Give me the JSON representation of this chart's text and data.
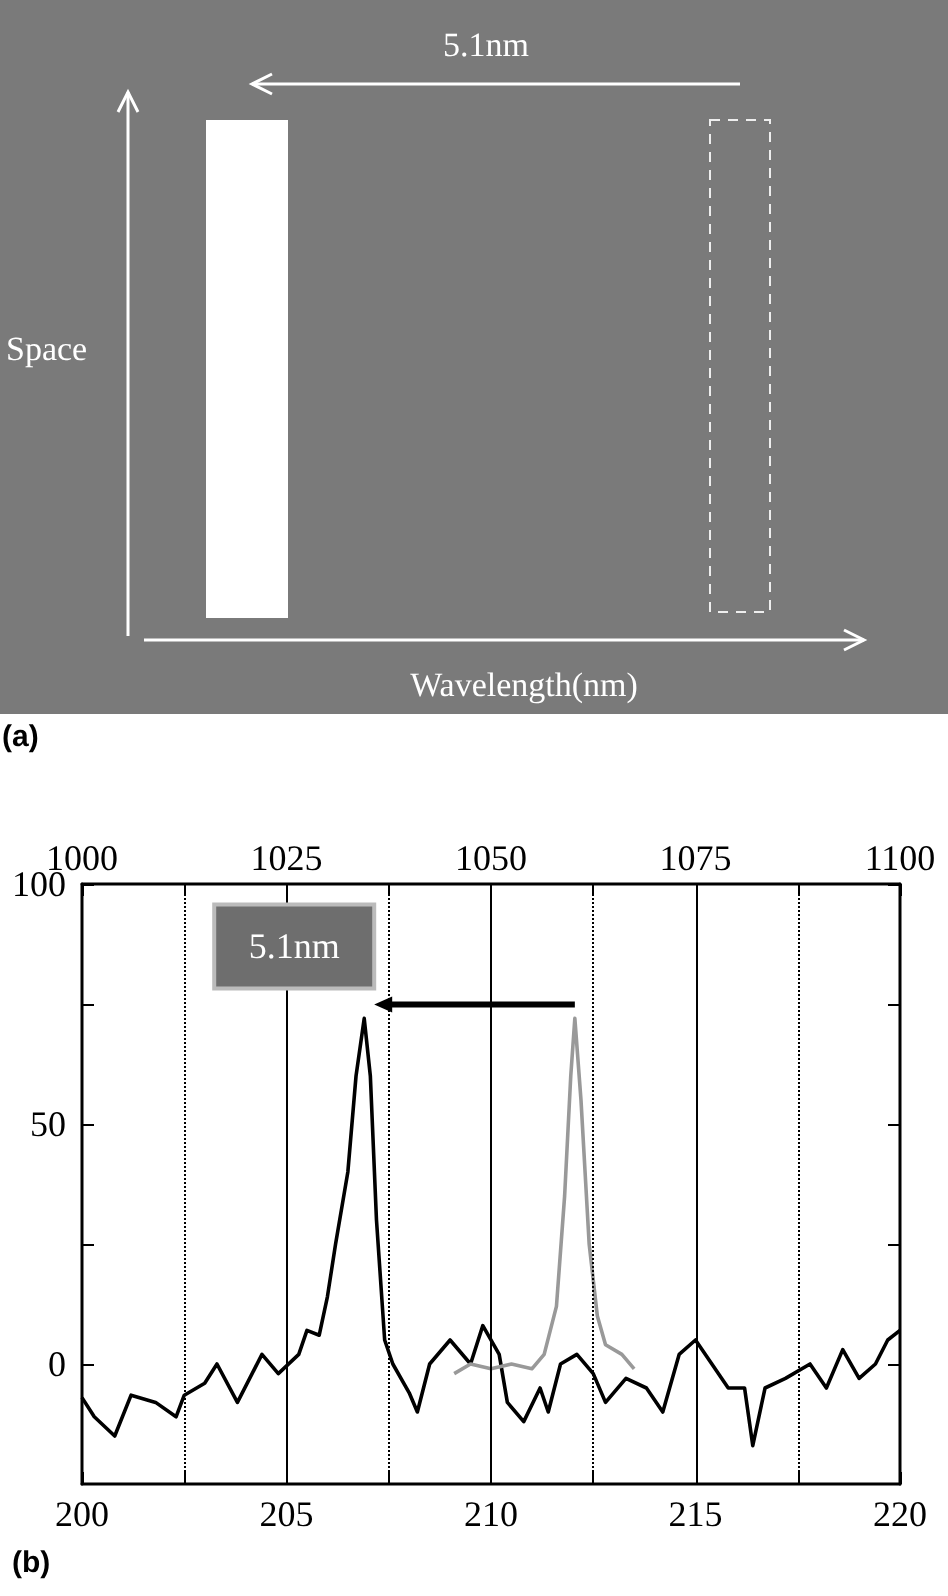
{
  "chart_data": [
    {
      "type": "other",
      "title": "(a)",
      "annotations": [
        "5.1nm",
        "Space",
        "Wavelength(nm)"
      ]
    },
    {
      "type": "line",
      "title": "(b)",
      "xlim": [
        200,
        220
      ],
      "xticks": [
        200,
        {
          "value": 202.5,
          "label": null
        },
        205,
        {
          "value": 207.5,
          "label": null
        },
        210,
        {
          "value": 212.5,
          "label": null
        },
        215,
        {
          "value": 217.5,
          "label": null
        },
        220
      ],
      "x2lim": [
        1000,
        1100
      ],
      "x2ticks": [
        1000,
        {
          "value": 1012.5,
          "label": null
        },
        1025,
        {
          "value": 1037.5,
          "label": null
        },
        1050,
        {
          "value": 1062.5,
          "label": null
        },
        1075,
        {
          "value": 1087.5,
          "label": null
        },
        1100
      ],
      "ylim": [
        -25,
        100
      ],
      "yticks": [
        0,
        {
          "value": 25,
          "label": null
        },
        50,
        {
          "value": 75,
          "label": null
        },
        100
      ],
      "grid": "x",
      "marker": "none",
      "annotations": [
        "5.1nm"
      ],
      "series": [
        {
          "color": "#000000",
          "x": [
            200,
            200.3,
            200.8,
            201.2,
            201.8,
            202.3,
            202.5,
            203,
            203.3,
            203.8,
            204.4,
            204.8,
            205.3,
            205.5,
            205.8,
            206,
            206.2,
            206.5,
            206.7,
            206.9,
            207.05,
            207.2,
            207.4,
            207.6,
            208,
            208.2,
            208.5,
            209,
            209.5,
            209.8,
            210.2,
            210.4,
            210.8,
            211.2,
            211.4,
            211.7,
            212.1,
            212.5,
            212.8,
            213.3,
            213.8,
            214.2,
            214.6,
            215,
            215.4,
            215.8,
            216.2,
            216.4,
            216.7,
            217.2,
            217.8,
            218.2,
            218.6,
            219,
            219.4,
            219.7,
            220
          ],
          "values": [
            -7,
            -11,
            -15,
            -6.5,
            -8,
            -11,
            -6.5,
            -4,
            0,
            -8,
            2,
            -2,
            2,
            7,
            6,
            14,
            25,
            40,
            60,
            72,
            60,
            30,
            5,
            0,
            -6,
            -10,
            0,
            5,
            0,
            8,
            2,
            -8,
            -12,
            -5,
            -10,
            0,
            2,
            -2,
            -8,
            -3,
            -5,
            -10,
            2,
            5,
            0,
            -5,
            -5,
            -17,
            -5,
            -3,
            0,
            -5,
            3,
            -3,
            0,
            5,
            7
          ]
        },
        {
          "color": "#999999",
          "x": [
            209.1,
            209.5,
            210,
            210.5,
            211,
            211.3,
            211.6,
            211.8,
            211.95,
            212.05,
            212.2,
            212.4,
            212.6,
            212.8,
            213.2,
            213.5
          ],
          "values": [
            -2,
            0,
            -1,
            0,
            -1,
            2,
            12,
            35,
            60,
            72,
            55,
            25,
            10,
            4,
            2,
            -1
          ]
        }
      ]
    }
  ]
}
